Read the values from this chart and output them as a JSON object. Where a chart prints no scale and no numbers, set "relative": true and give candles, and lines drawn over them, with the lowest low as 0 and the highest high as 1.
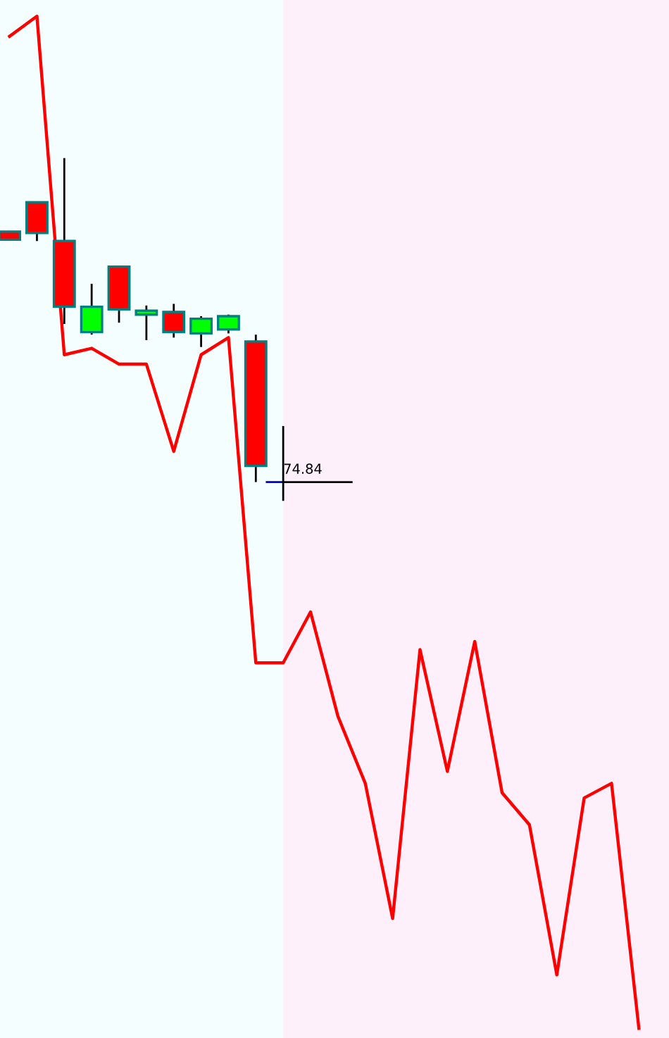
{
  "chart_data": {
    "type": "candlestick",
    "relative": true,
    "categories": [
      null,
      null,
      null,
      null,
      null,
      null,
      null,
      null,
      null,
      null,
      null,
      null,
      null,
      null,
      null,
      null,
      null,
      null,
      null,
      null,
      null,
      null,
      null,
      null
    ],
    "ohlc": [
      [
        0.773,
        0.773,
        0.748,
        0.748
      ],
      [
        0.864,
        0.864,
        0.744,
        0.769
      ],
      [
        0.744,
        1,
        0.488,
        0.541
      ],
      [
        0.463,
        0.612,
        0.455,
        0.541
      ],
      [
        0.665,
        0.665,
        0.492,
        0.533
      ],
      [
        0.517,
        0.545,
        0.438,
        0.529
      ],
      [
        0.525,
        0.55,
        0.446,
        0.463
      ],
      [
        0.459,
        0.512,
        0.417,
        0.504
      ],
      [
        0.471,
        0.517,
        0.459,
        0.512
      ],
      [
        0.434,
        0.455,
        0,
        0.05
      ],
      null,
      null,
      null,
      null,
      null,
      null,
      null,
      null,
      null,
      null,
      null,
      null,
      null,
      null
    ],
    "colors": [
      "#ff0000",
      "#ff0000",
      "#ff0000",
      "#00ff00",
      "#ff0000",
      "#00ff00",
      "#ff0000",
      "#00ff00",
      "#00ff00",
      "#ff0000",
      null,
      null,
      null,
      null,
      null,
      null,
      null,
      null,
      null,
      null,
      null,
      null,
      null,
      null
    ],
    "series": [
      {
        "type": "line",
        "color": "#ff0000",
        "values": [
          1.376,
          1.438,
          0.393,
          0.413,
          0.364,
          0.364,
          0.095,
          0.393,
          0.446,
          -0.558,
          -0.558,
          -0.401,
          -0.723,
          -0.93,
          -1.347,
          -0.517,
          -0.893,
          -0.492,
          -0.959,
          -1.058,
          -1.521,
          -0.975,
          -0.93,
          -1.686
        ]
      }
    ],
    "annotations": [
      "74.84"
    ]
  }
}
